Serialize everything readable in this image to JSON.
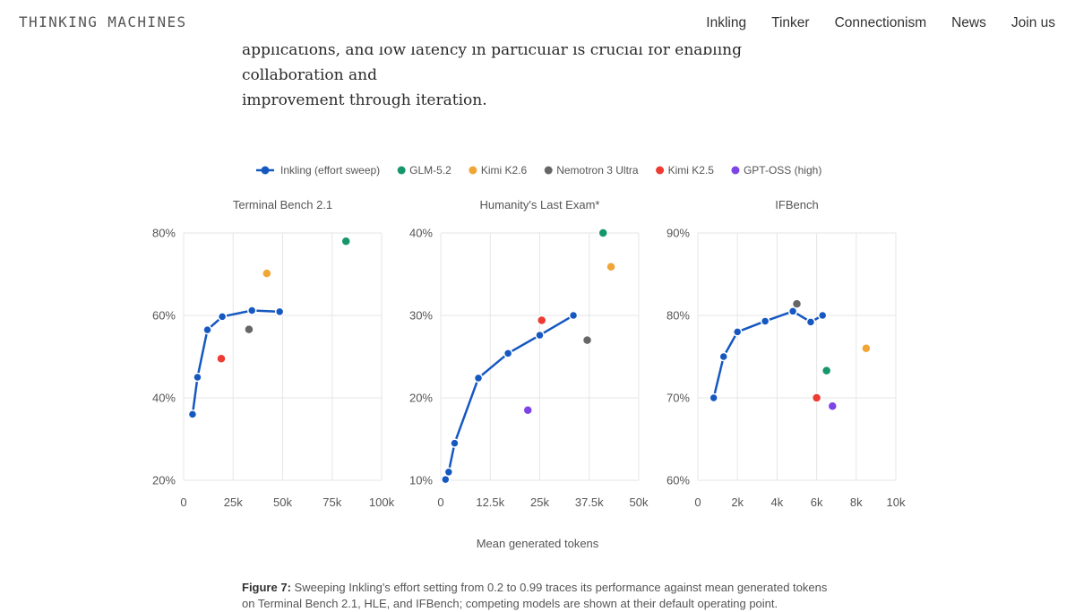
{
  "nav": {
    "brand": "THINKING MACHINES",
    "items": [
      "Inkling",
      "Tinker",
      "Connectionism",
      "News",
      "Join us"
    ]
  },
  "article": {
    "line1": "applications, and low latency in particular is crucial for enabling collaboration and",
    "line2": "improvement through iteration."
  },
  "caption": {
    "label": "Figure 7:",
    "text": "Sweeping Inkling's effort setting from 0.2 to 0.99 traces its performance against mean generated tokens on Terminal Bench 2.1, HLE, and IFBench; competing models are shown at their default operating point."
  },
  "colors": {
    "Inkling (effort sweep)": "#1558c0",
    "GLM-5.2": "#15976b",
    "Kimi K2.6": "#f0a535",
    "Nemotron 3 Ultra": "#666666",
    "Kimi K2.5": "#ee3b33",
    "GPT-OSS (high)": "#7d45e6"
  },
  "chart_data": {
    "type": "scatter",
    "xlabel": "Mean generated tokens",
    "legend": [
      "Inkling (effort sweep)",
      "GLM-5.2",
      "Kimi K2.6",
      "Nemotron 3 Ultra",
      "Kimi K2.5",
      "GPT-OSS (high)"
    ],
    "legend_position": "top-center",
    "grid": true,
    "panels": [
      {
        "title": "Terminal Bench 2.1",
        "xlim": [
          0,
          100000
        ],
        "ylim": [
          20,
          80
        ],
        "xticks": [
          0,
          25000,
          50000,
          75000,
          100000
        ],
        "xtick_labels": [
          "0",
          "25k",
          "50k",
          "75k",
          "100k"
        ],
        "yticks": [
          20,
          40,
          60,
          80
        ],
        "ytick_labels": [
          "20%",
          "40%",
          "60%",
          "80%"
        ],
        "inkling": [
          [
            4500,
            36
          ],
          [
            7000,
            45
          ],
          [
            12000,
            56.5
          ],
          [
            19500,
            59.7
          ],
          [
            34500,
            61.2
          ],
          [
            48500,
            60.9
          ]
        ],
        "models": [
          {
            "name": "GLM-5.2",
            "x": 82000,
            "y": 78
          },
          {
            "name": "Kimi K2.6",
            "x": 42000,
            "y": 70.2
          },
          {
            "name": "Nemotron 3 Ultra",
            "x": 33000,
            "y": 56.6
          },
          {
            "name": "Kimi K2.5",
            "x": 19000,
            "y": 49.5
          }
        ]
      },
      {
        "title": "Humanity's Last Exam*",
        "xlim": [
          0,
          50000
        ],
        "ylim": [
          10,
          40
        ],
        "xticks": [
          0,
          12500,
          25000,
          37500,
          50000
        ],
        "xtick_labels": [
          "0",
          "12.5k",
          "25k",
          "37.5k",
          "50k"
        ],
        "yticks": [
          10,
          20,
          30,
          40
        ],
        "ytick_labels": [
          "10%",
          "20%",
          "30%",
          "40%"
        ],
        "inkling": [
          [
            1200,
            10.1
          ],
          [
            2000,
            11
          ],
          [
            3500,
            14.5
          ],
          [
            9500,
            22.4
          ],
          [
            17000,
            25.4
          ],
          [
            25000,
            27.6
          ],
          [
            33500,
            30
          ]
        ],
        "models": [
          {
            "name": "GLM-5.2",
            "x": 41000,
            "y": 40
          },
          {
            "name": "Kimi K2.6",
            "x": 43000,
            "y": 35.9
          },
          {
            "name": "Nemotron 3 Ultra",
            "x": 37000,
            "y": 27
          },
          {
            "name": "Kimi K2.5",
            "x": 25500,
            "y": 29.4
          },
          {
            "name": "GPT-OSS (high)",
            "x": 22000,
            "y": 18.5
          }
        ]
      },
      {
        "title": "IFBench",
        "xlim": [
          0,
          10000
        ],
        "ylim": [
          60,
          90
        ],
        "xticks": [
          0,
          2000,
          4000,
          6000,
          8000,
          10000
        ],
        "xtick_labels": [
          "0",
          "2k",
          "4k",
          "6k",
          "8k",
          "10k"
        ],
        "yticks": [
          60,
          70,
          80,
          90
        ],
        "ytick_labels": [
          "60%",
          "70%",
          "80%",
          "90%"
        ],
        "inkling": [
          [
            800,
            70
          ],
          [
            1300,
            75
          ],
          [
            2000,
            78
          ],
          [
            3400,
            79.3
          ],
          [
            4800,
            80.5
          ],
          [
            5700,
            79.2
          ],
          [
            6300,
            80
          ]
        ],
        "models": [
          {
            "name": "GLM-5.2",
            "x": 6500,
            "y": 73.3
          },
          {
            "name": "Kimi K2.6",
            "x": 8500,
            "y": 76
          },
          {
            "name": "Nemotron 3 Ultra",
            "x": 5000,
            "y": 81.4
          },
          {
            "name": "Kimi K2.5",
            "x": 6000,
            "y": 70
          },
          {
            "name": "GPT-OSS (high)",
            "x": 6800,
            "y": 69
          }
        ]
      }
    ]
  }
}
